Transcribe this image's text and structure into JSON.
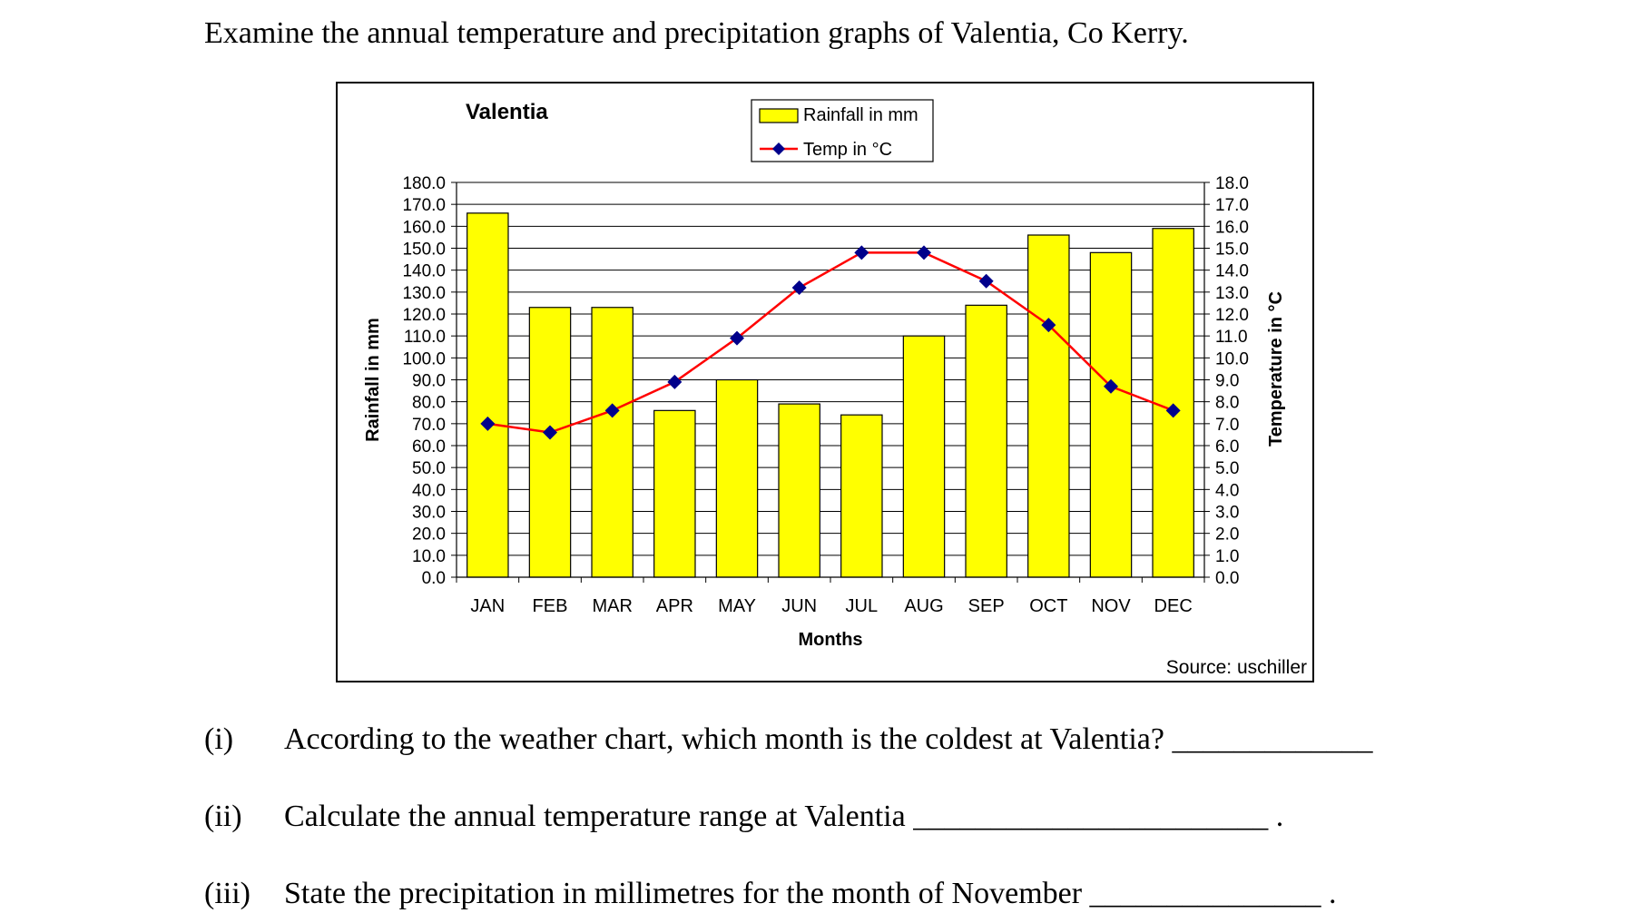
{
  "intro": "Examine the annual temperature and precipitation graphs of Valentia, Co Kerry.",
  "colors": {
    "bar_fill": "#ffff00",
    "line": "#ff0000",
    "marker": "#00008b",
    "grid": "#000000"
  },
  "chart_data": {
    "type": "bar+line",
    "title": "Valentia",
    "categories": [
      "JAN",
      "FEB",
      "MAR",
      "APR",
      "MAY",
      "JUN",
      "JUL",
      "AUG",
      "SEP",
      "OCT",
      "NOV",
      "DEC"
    ],
    "series": [
      {
        "name": "Rainfall in mm",
        "type": "bar",
        "axis": "left",
        "values": [
          166,
          123,
          123,
          76,
          90,
          79,
          74,
          110,
          124,
          156,
          148,
          159
        ]
      },
      {
        "name": "Temp in °C",
        "type": "line",
        "axis": "right",
        "values": [
          7.0,
          6.6,
          7.6,
          8.9,
          10.9,
          13.2,
          14.8,
          14.8,
          13.5,
          11.5,
          8.7,
          7.6
        ]
      }
    ],
    "xlabel": "Months",
    "ylabel": "Rainfall in mm",
    "y2label": "Temperature in °C",
    "ylim": [
      0,
      180
    ],
    "y2lim": [
      0,
      18
    ],
    "yticks": [
      "0.0",
      "10.0",
      "20.0",
      "30.0",
      "40.0",
      "50.0",
      "60.0",
      "70.0",
      "80.0",
      "90.0",
      "100.0",
      "110.0",
      "120.0",
      "130.0",
      "140.0",
      "150.0",
      "160.0",
      "170.0",
      "180.0"
    ],
    "y2ticks": [
      "0.0",
      "1.0",
      "2.0",
      "3.0",
      "4.0",
      "5.0",
      "6.0",
      "7.0",
      "8.0",
      "9.0",
      "10.0",
      "11.0",
      "12.0",
      "13.0",
      "14.0",
      "15.0",
      "16.0",
      "17.0",
      "18.0"
    ],
    "grid": true,
    "legend": "top-center",
    "source": "Source: uschiller"
  },
  "questions": [
    {
      "num": "(i)",
      "text": "According to the weather chart, which month is the coldest at Valentia? _____________"
    },
    {
      "num": "(ii)",
      "text": "Calculate the annual temperature range at Valentia _______________________ ."
    },
    {
      "num": "(iii)",
      "text": "State the precipitation in millimetres for the month of November _______________ ."
    }
  ]
}
